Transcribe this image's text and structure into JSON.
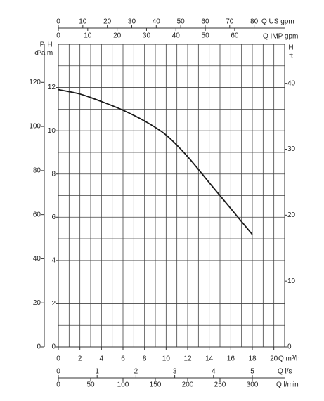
{
  "chart_data": {
    "type": "line",
    "x": [
      0,
      2,
      4,
      6,
      8,
      10,
      12,
      14,
      16,
      18
    ],
    "values": [
      11.9,
      11.7,
      11.35,
      10.95,
      10.45,
      9.8,
      8.8,
      7.6,
      6.4,
      5.2
    ],
    "color": "#1a1a1a",
    "xlim": [
      0,
      21
    ],
    "xticks": [
      0,
      2,
      4,
      6,
      8,
      10,
      12,
      14,
      16,
      18,
      20
    ],
    "xlabel": "Q m³/h",
    "ylim": [
      0,
      14
    ],
    "yticks": [
      0,
      2,
      4,
      6,
      8,
      10,
      12
    ],
    "ylabel": [
      "H",
      "m"
    ],
    "grid": true,
    "xgrid": [
      0,
      1,
      2,
      3,
      4,
      5,
      6,
      7,
      8,
      9,
      10,
      11,
      12,
      13,
      14,
      15,
      16,
      17,
      18,
      19,
      20,
      21
    ],
    "ygrid": [
      0,
      1,
      2,
      3,
      4,
      5,
      6,
      7,
      8,
      9,
      10,
      11,
      12,
      13,
      14
    ],
    "axes": {
      "us_gpm": {
        "label": "Q US gpm",
        "lim": [
          0,
          92.46
        ],
        "ticks": [
          0,
          10,
          20,
          30,
          40,
          50,
          60,
          70,
          80
        ]
      },
      "imp_gpm": {
        "label": "Q IMP gpm",
        "lim": [
          0,
          77.0
        ],
        "ticks": [
          0,
          10,
          20,
          30,
          40,
          50,
          60
        ]
      },
      "ls": {
        "label": "Q l/s",
        "lim": [
          0,
          5.833
        ],
        "ticks": [
          0,
          1,
          2,
          3,
          4,
          5
        ]
      },
      "lmin": {
        "label": "Q l/min",
        "lim": [
          0,
          350
        ],
        "ticks": [
          0,
          50,
          100,
          150,
          200,
          250,
          300
        ]
      },
      "kpa": {
        "label": [
          "P",
          "kPa"
        ],
        "lim": [
          0,
          137.3
        ],
        "ticks": [
          0,
          20,
          40,
          60,
          80,
          100,
          120
        ]
      },
      "ft": {
        "label": [
          "H",
          "ft"
        ],
        "lim": [
          0,
          45.93
        ],
        "ticks": [
          0,
          10,
          20,
          30,
          40
        ]
      }
    }
  }
}
